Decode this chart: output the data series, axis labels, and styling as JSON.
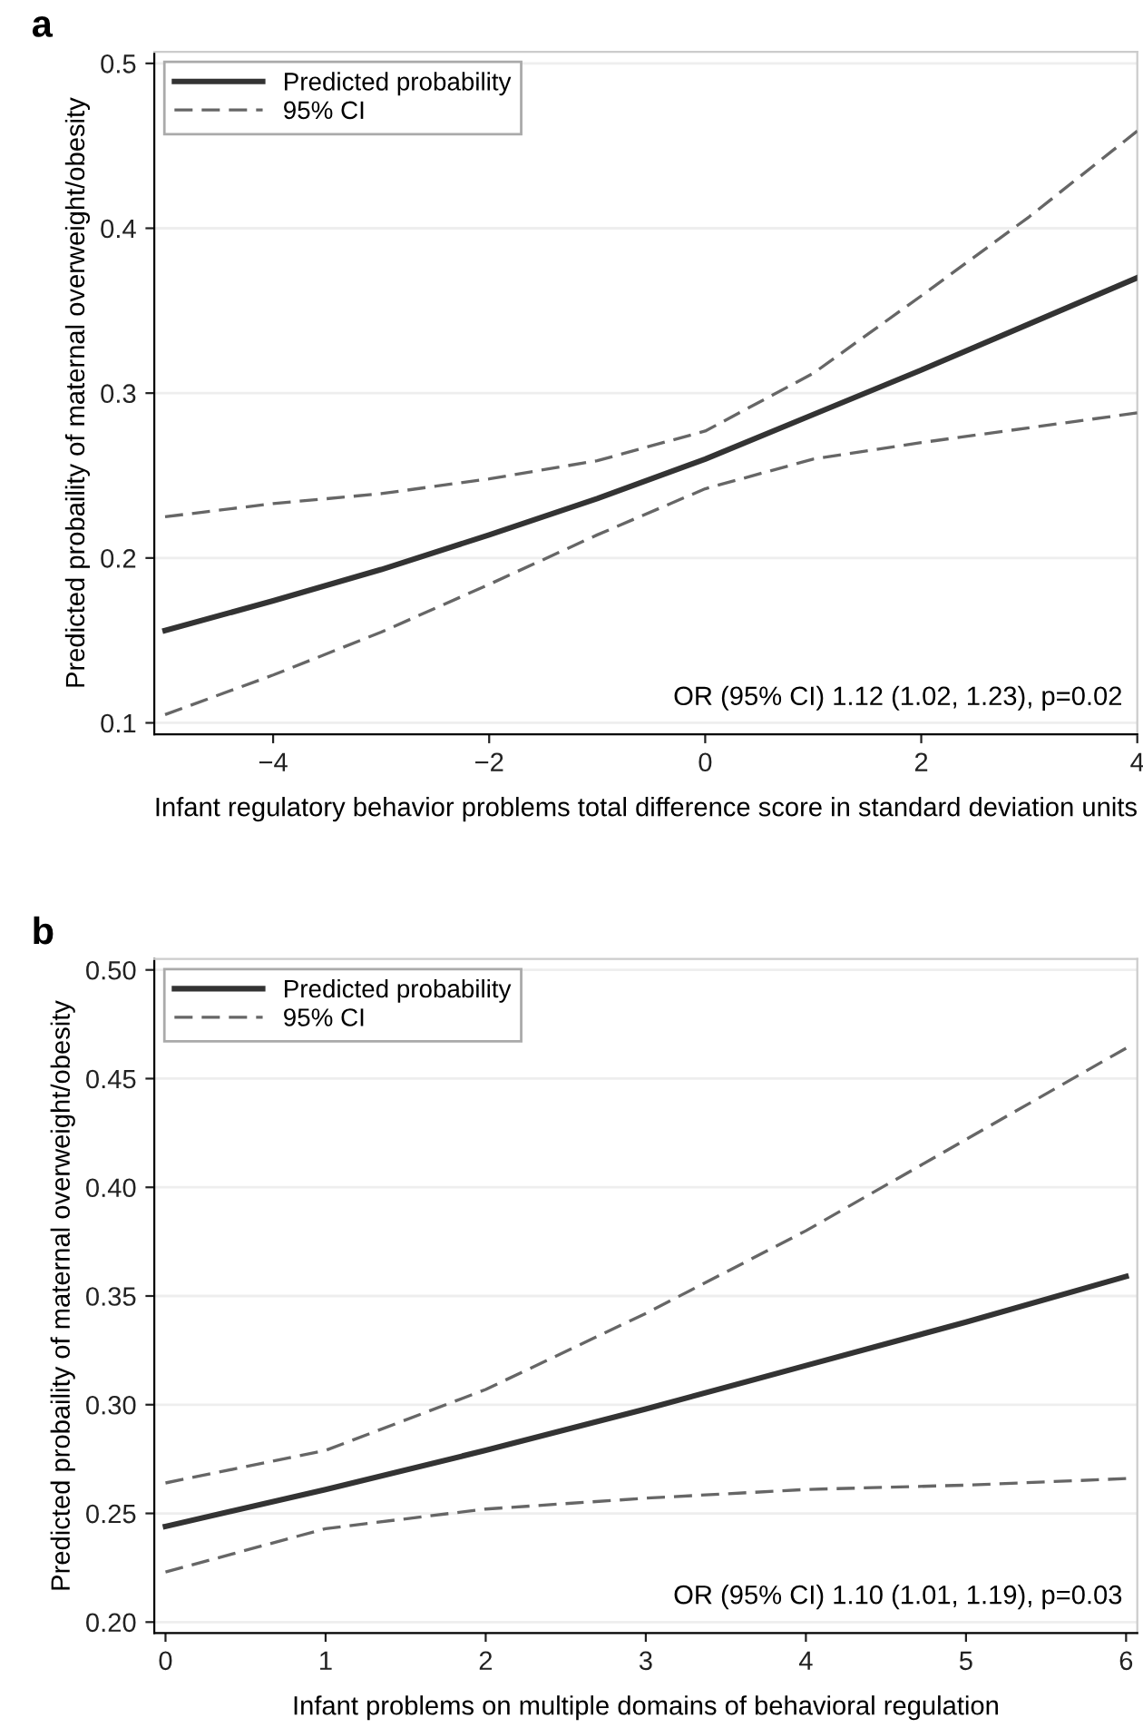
{
  "chart_data": [
    {
      "type": "line",
      "title": "a",
      "xlabel": "Infant regulatory behavior problems total difference score in standard deviation units",
      "ylabel": "Predicted probaility of maternal overweight/obesity",
      "x": [
        -5,
        -4,
        -3,
        -2,
        -1,
        0,
        1,
        2,
        3,
        4
      ],
      "series": [
        {
          "name": "Predicted probability",
          "color": "#333333",
          "line_style": "solid",
          "values": [
            0.156,
            0.174,
            0.193,
            0.214,
            0.236,
            0.26,
            0.287,
            0.314,
            0.342,
            0.37
          ]
        },
        {
          "name": "95% CI",
          "color": "#666666",
          "line_style": "dashed",
          "values": [
            0.225,
            0.233,
            0.239,
            0.248,
            0.259,
            0.277,
            0.312,
            0.359,
            0.407,
            0.459
          ]
        },
        {
          "color": "#666666",
          "line_style": "dashed",
          "values": [
            0.105,
            0.129,
            0.155,
            0.184,
            0.214,
            0.242,
            0.26,
            0.27,
            0.279,
            0.288
          ]
        }
      ],
      "xlim": [
        -5.1,
        4
      ],
      "xticks": [
        {
          "value": -4,
          "label": "−4"
        },
        {
          "value": -2,
          "label": "−2"
        },
        0,
        2,
        4
      ],
      "ylim": [
        0.093,
        0.507
      ],
      "yticks": [
        0.1,
        0.2,
        0.3,
        0.4,
        0.5
      ],
      "grid": "y",
      "legend": "top left",
      "annotations": [
        "OR (95% CI) 1.12 (1.02, 1.23), p=0.02"
      ]
    },
    {
      "type": "line",
      "title": "b",
      "xlabel": "Infant problems on multiple domains of behavioral regulation",
      "ylabel": "Predicted probaility of maternal overweight/obesity",
      "x": [
        0,
        1,
        2,
        3,
        4,
        5,
        6
      ],
      "series": [
        {
          "name": "Predicted probability",
          "color": "#333333",
          "line_style": "solid",
          "values": [
            0.244,
            0.261,
            0.279,
            0.298,
            0.318,
            0.338,
            0.359
          ]
        },
        {
          "name": "95% CI",
          "color": "#666666",
          "line_style": "dashed",
          "values": [
            0.264,
            0.279,
            0.307,
            0.342,
            0.38,
            0.422,
            0.464
          ]
        },
        {
          "color": "#666666",
          "line_style": "dashed",
          "values": [
            0.223,
            0.243,
            0.252,
            0.257,
            0.261,
            0.263,
            0.266
          ]
        }
      ],
      "xlim": [
        -0.07,
        6.07
      ],
      "xticks": [
        0,
        1,
        2,
        3,
        4,
        5,
        6
      ],
      "ylim": [
        0.195,
        0.505
      ],
      "yticks": [
        {
          "value": 0.2,
          "label": "0.20"
        },
        {
          "value": 0.25,
          "label": "0.25"
        },
        {
          "value": 0.3,
          "label": "0.30"
        },
        {
          "value": 0.35,
          "label": "0.35"
        },
        {
          "value": 0.4,
          "label": "0.40"
        },
        {
          "value": 0.45,
          "label": "0.45"
        },
        {
          "value": 0.5,
          "label": "0.50"
        }
      ],
      "grid": "y",
      "legend": "top left",
      "annotations": [
        "OR (95% CI) 1.10 (1.01, 1.19), p=0.03"
      ]
    }
  ]
}
